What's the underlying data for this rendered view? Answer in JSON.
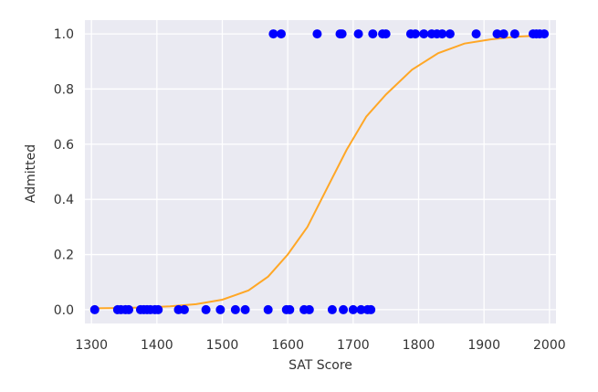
{
  "chart_data": {
    "type": "scatter",
    "xlabel": "SAT Score",
    "ylabel": "Admitted",
    "xlim": [
      1290,
      2010
    ],
    "ylim": [
      -0.05,
      1.05
    ],
    "xticks": [
      1300,
      1400,
      1500,
      1600,
      1700,
      1800,
      1900,
      2000
    ],
    "yticks": [
      0.0,
      0.2,
      0.4,
      0.6,
      0.8,
      1.0
    ],
    "ytick_labels": [
      "0.0",
      "0.2",
      "0.4",
      "0.6",
      "0.8",
      "1.0"
    ],
    "grid": true,
    "colors": {
      "background": "#eaeaf2",
      "grid": "#ffffff",
      "points": "#0000ff",
      "curve": "#ffa726"
    },
    "scatter_x": [
      1305,
      1340,
      1345,
      1352,
      1357,
      1375,
      1380,
      1385,
      1390,
      1397,
      1402,
      1433,
      1442,
      1475,
      1497,
      1520,
      1535,
      1570,
      1598,
      1603,
      1625,
      1633,
      1668,
      1685,
      1700,
      1712,
      1722,
      1727,
      1578,
      1590,
      1645,
      1680,
      1683,
      1708,
      1730,
      1745,
      1750,
      1788,
      1795,
      1808,
      1820,
      1828,
      1836,
      1848,
      1888,
      1920,
      1930,
      1947,
      1975,
      1980,
      1985,
      1992
    ],
    "scatter_y": [
      0,
      0,
      0,
      0,
      0,
      0,
      0,
      0,
      0,
      0,
      0,
      0,
      0,
      0,
      0,
      0,
      0,
      0,
      0,
      0,
      0,
      0,
      0,
      0,
      0,
      0,
      0,
      0,
      1,
      1,
      1,
      1,
      1,
      1,
      1,
      1,
      1,
      1,
      1,
      1,
      1,
      1,
      1,
      1,
      1,
      1,
      1,
      1,
      1,
      1,
      1,
      1
    ],
    "curve_x": [
      1305,
      1340,
      1380,
      1420,
      1460,
      1500,
      1540,
      1570,
      1600,
      1630,
      1660,
      1690,
      1720,
      1750,
      1790,
      1830,
      1870,
      1910,
      1950,
      1992
    ],
    "curve_y": [
      0.005,
      0.006,
      0.008,
      0.012,
      0.02,
      0.036,
      0.07,
      0.12,
      0.2,
      0.3,
      0.44,
      0.58,
      0.7,
      0.78,
      0.87,
      0.93,
      0.965,
      0.98,
      0.99,
      0.995
    ]
  }
}
